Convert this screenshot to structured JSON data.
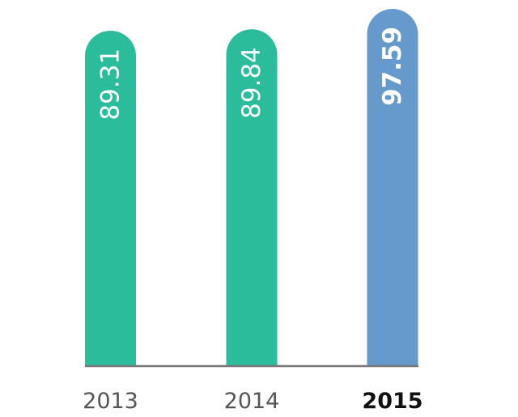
{
  "chart_data": {
    "type": "bar",
    "categories": [
      "2013",
      "2014",
      "2015"
    ],
    "values": [
      89.31,
      89.84,
      97.59
    ],
    "value_labels": [
      "89.31",
      "89.84",
      "97.59"
    ],
    "highlighted_category": "2015",
    "title": "",
    "xlabel": "",
    "ylabel": "",
    "grid": false,
    "colors": {
      "default_bar": "#2bbc9b",
      "highlight_bar": "#6699cc",
      "baseline": "#777777",
      "label": "#ffffff",
      "category_text": "#555555",
      "highlight_text": "#111111"
    }
  }
}
